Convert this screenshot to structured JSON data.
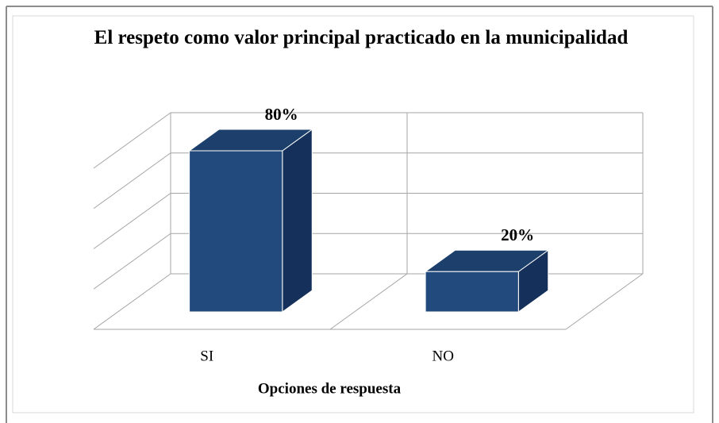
{
  "chart_data": {
    "type": "bar3d",
    "title": "El respeto como valor principal practicado en la municipalidad",
    "x_label": "Opciones de respuesta",
    "categories": [
      "SI",
      "NO"
    ],
    "values": [
      80,
      20
    ],
    "value_labels": [
      "80%",
      "20%"
    ],
    "color": "#234a7c",
    "ylim": [
      0,
      80
    ],
    "yticks": [
      0,
      20,
      40,
      60,
      80
    ],
    "grid": true
  }
}
